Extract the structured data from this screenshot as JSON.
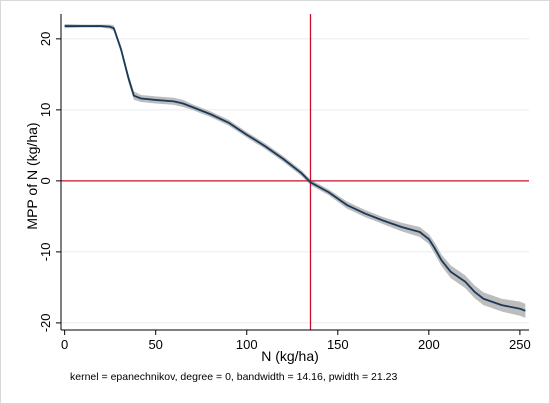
{
  "chart_data": {
    "type": "line",
    "title": "",
    "xlabel": "N (kg/ha)",
    "ylabel": "MPP of N (kg/ha)",
    "note": "kernel = epanechnikov, degree = 0, bandwidth = 14.16, pwidth = 21.23",
    "xlim": [
      -2,
      255
    ],
    "ylim": [
      -21,
      23.5
    ],
    "xticks": [
      "0",
      "50",
      "100",
      "150",
      "200",
      "250"
    ],
    "yticks": [
      "-20",
      "-10",
      "0",
      "10",
      "20"
    ],
    "grid": true,
    "legend": "none",
    "reference_lines": {
      "x": 135,
      "y": 0
    },
    "series": [
      {
        "x": [
          0,
          10,
          20,
          25,
          27,
          31,
          35,
          38,
          42,
          50,
          60,
          65,
          70,
          80,
          90,
          100,
          110,
          120,
          130,
          135,
          145,
          155,
          165,
          175,
          185,
          195,
          200,
          203,
          207,
          212,
          220,
          225,
          230,
          240,
          250,
          253
        ],
        "y": [
          21.8,
          21.8,
          21.8,
          21.7,
          21.5,
          18.5,
          14.5,
          12.0,
          11.6,
          11.4,
          11.2,
          10.9,
          10.4,
          9.4,
          8.2,
          6.5,
          4.9,
          3.1,
          1.1,
          -0.2,
          -1.6,
          -3.4,
          -4.6,
          -5.6,
          -6.5,
          -7.2,
          -8.2,
          -9.4,
          -11.2,
          -12.8,
          -14.2,
          -15.6,
          -16.6,
          -17.5,
          -18.0,
          -18.3
        ],
        "ci_halfwidth": [
          0.3,
          0.2,
          0.2,
          0.3,
          0.4,
          0.5,
          0.6,
          0.6,
          0.5,
          0.5,
          0.5,
          0.5,
          0.4,
          0.4,
          0.4,
          0.4,
          0.4,
          0.4,
          0.4,
          0.4,
          0.4,
          0.5,
          0.5,
          0.5,
          0.6,
          0.7,
          0.7,
          0.8,
          0.8,
          0.9,
          0.9,
          0.9,
          0.9,
          0.9,
          1.0,
          1.0
        ]
      }
    ],
    "colors": {
      "line": "#1a3a5a",
      "band": "#bdbdbd",
      "refline": "#c8102e",
      "grid": "#e6ecef",
      "axis": "#000000"
    }
  }
}
